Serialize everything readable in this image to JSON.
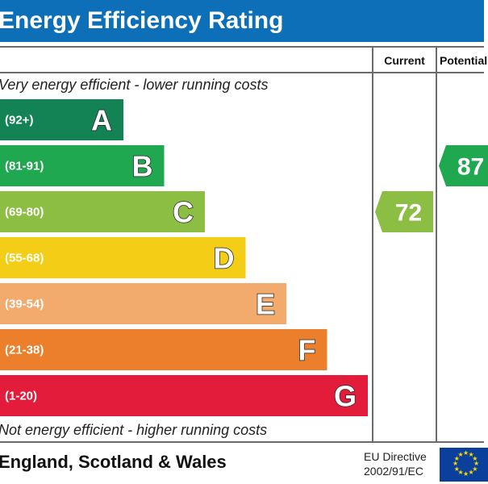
{
  "title": "Energy Efficiency Rating",
  "columns": {
    "current": "Current",
    "potential": "Potential"
  },
  "top_note": "Very energy efficient - lower running costs",
  "bottom_note": "Not energy efficient - higher running costs",
  "footer": {
    "region": "England, Scotland & Wales",
    "directive_line1": "EU Directive",
    "directive_line2": "2002/91/EC",
    "flag_icon": "eu-flag-icon"
  },
  "colors": {
    "title_bg": "#0d6fb8",
    "A": "#138356",
    "B": "#1fa84f",
    "C": "#8cbe44",
    "D": "#f4cd16",
    "E": "#f2ab6d",
    "F": "#ec7f2c",
    "G": "#e31c3c"
  },
  "chart_data": {
    "type": "bar",
    "categories": [
      "A",
      "B",
      "C",
      "D",
      "E",
      "F",
      "G"
    ],
    "ranges": [
      "(92+)",
      "(81-91)",
      "(69-80)",
      "(55-68)",
      "(39-54)",
      "(21-38)",
      "(1-20)"
    ],
    "lower_bounds": [
      92,
      81,
      69,
      55,
      39,
      21,
      1
    ],
    "series": [
      {
        "name": "Current",
        "value": 72,
        "band": "C"
      },
      {
        "name": "Potential",
        "value": 87,
        "band": "B"
      }
    ]
  }
}
